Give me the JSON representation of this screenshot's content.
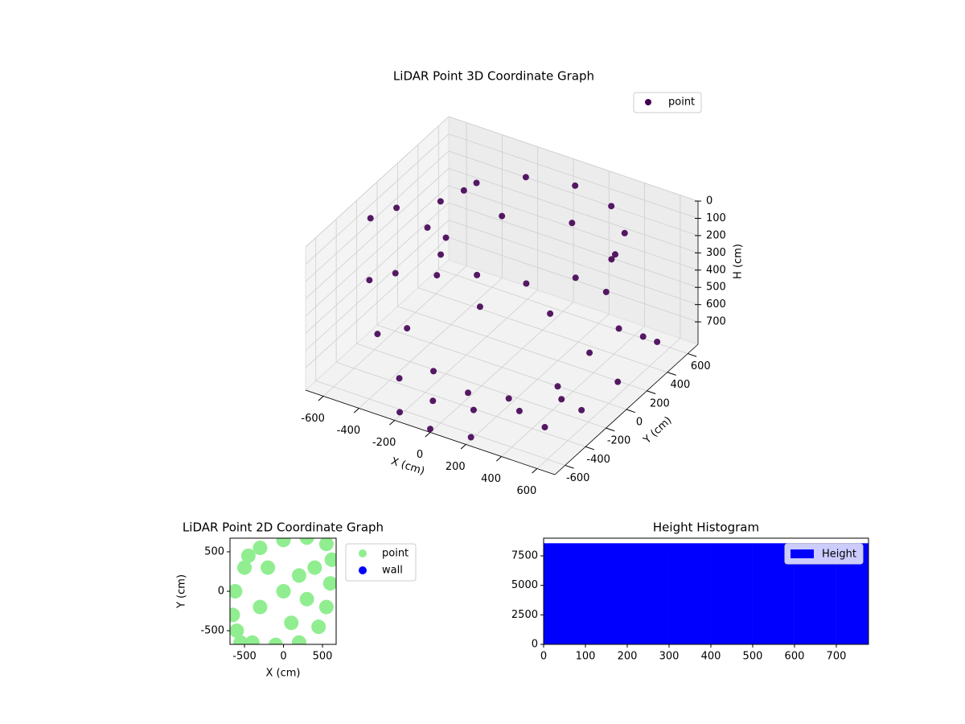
{
  "chart_data": [
    {
      "type": "scatter3d",
      "title": "LiDAR Point 3D Coordinate Graph",
      "xlabel": "X (cm)",
      "ylabel": "Y (cm)",
      "zlabel": "H (cm)",
      "xlim": [
        -700,
        700
      ],
      "ylim": [
        -700,
        700
      ],
      "zlim": [
        830,
        0
      ],
      "xticks": [
        -600,
        -400,
        -200,
        0,
        200,
        400,
        600
      ],
      "yticks": [
        -600,
        -400,
        -200,
        0,
        200,
        400,
        600
      ],
      "zticks": [
        0,
        100,
        200,
        300,
        400,
        500,
        600,
        700
      ],
      "grid": true,
      "legend": "upper right",
      "series": [
        {
          "name": "point",
          "color": "#440154",
          "x": [
            530,
            466,
            290,
            50,
            -190,
            -366,
            -430,
            -366,
            -190,
            50,
            290,
            466,
            500,
            368,
            50,
            -268,
            -400,
            -268,
            50,
            368,
            -680,
            -600,
            -480,
            -300,
            -100,
            100,
            300,
            450,
            -620,
            -540,
            -400,
            -200,
            0,
            200,
            400,
            550,
            600,
            650,
            620,
            500,
            680,
            700,
            -200,
            0,
            200,
            -500
          ],
          "y": [
            150,
            390,
            566,
            630,
            566,
            390,
            150,
            -90,
            -266,
            -330,
            -266,
            -90,
            150,
            468,
            600,
            468,
            150,
            -168,
            -300,
            -168,
            -100,
            -250,
            -380,
            -480,
            -500,
            -450,
            -350,
            -200,
            50,
            -100,
            -230,
            -320,
            -330,
            -280,
            -150,
            -100,
            100,
            250,
            -300,
            -450,
            -50,
            300,
            -650,
            -700,
            -650,
            500
          ],
          "z": [
            100,
            100,
            100,
            100,
            100,
            100,
            100,
            100,
            100,
            100,
            100,
            100,
            300,
            300,
            300,
            300,
            300,
            300,
            300,
            300,
            150,
            400,
            600,
            740,
            790,
            800,
            790,
            750,
            150,
            420,
            620,
            750,
            800,
            790,
            720,
            500,
            450,
            560,
            700,
            760,
            650,
            600,
            810,
            810,
            815,
            250
          ]
        }
      ]
    },
    {
      "type": "scatter",
      "title": "LiDAR Point 2D Coordinate Graph",
      "xlabel": "X (cm)",
      "ylabel": "Y (cm)",
      "xlim": [
        -686,
        675
      ],
      "ylim": [
        -673,
        673
      ],
      "xticks": [
        -500,
        0,
        500
      ],
      "yticks": [
        -500,
        0,
        500
      ],
      "legend": "outside right",
      "series": [
        {
          "name": "point",
          "color": "#90ee90",
          "x": [
            -600,
            -650,
            -620,
            -500,
            -300,
            0,
            300,
            550,
            620,
            600,
            550,
            450,
            200,
            -100,
            -400,
            -300,
            0,
            200,
            300,
            -200,
            100,
            400,
            -550,
            -450
          ],
          "y": [
            -500,
            -300,
            0,
            300,
            550,
            650,
            680,
            600,
            400,
            100,
            -200,
            -450,
            -650,
            -680,
            -650,
            -200,
            0,
            200,
            -100,
            300,
            -400,
            300,
            -650,
            450
          ]
        },
        {
          "name": "wall",
          "color": "#0000ff",
          "x": [],
          "y": []
        }
      ]
    },
    {
      "type": "hist",
      "title": "Height Histogram",
      "bins": [
        0,
        100,
        200,
        300,
        400,
        500,
        600,
        700,
        777
      ],
      "counts": [
        8570,
        8570,
        8570,
        8570,
        8570,
        8570,
        8570,
        8570
      ],
      "name": "Height",
      "color": "#0000ff",
      "xlim": [
        0,
        777
      ],
      "ylim": [
        0,
        9000
      ],
      "xticks": [
        0,
        100,
        200,
        300,
        400,
        500,
        600,
        700
      ],
      "yticks": [
        0,
        2500,
        5000,
        7500
      ],
      "legend": "upper right"
    }
  ]
}
